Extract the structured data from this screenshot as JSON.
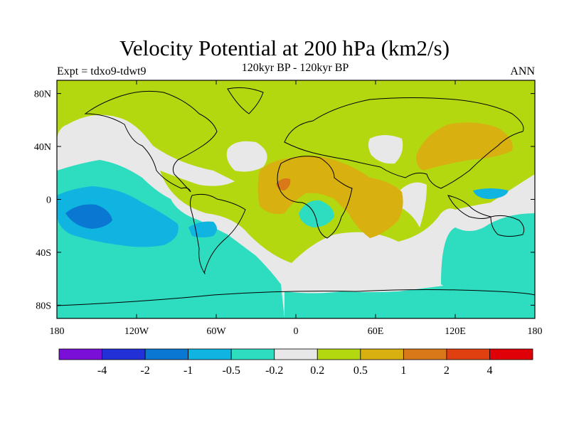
{
  "header": {
    "title": "Velocity Potential at 200 hPa (km2/s)",
    "subtitle": "120kyr BP - 120kyr BP",
    "left_label": "Expt = tdxo9-tdwt9",
    "right_label": "ANN"
  },
  "map": {
    "projection": "cylindrical equidistant",
    "lon_range": [
      -180,
      180
    ],
    "lat_range": [
      -90,
      90
    ],
    "lat_ticks": [
      {
        "value": 80,
        "label": "80N"
      },
      {
        "value": 40,
        "label": "40N"
      },
      {
        "value": 0,
        "label": "0"
      },
      {
        "value": -40,
        "label": "40S"
      },
      {
        "value": -80,
        "label": "80S"
      }
    ],
    "lon_ticks": [
      {
        "value": -180,
        "label": "180"
      },
      {
        "value": -120,
        "label": "120W"
      },
      {
        "value": -60,
        "label": "60W"
      },
      {
        "value": 0,
        "label": "0"
      },
      {
        "value": 60,
        "label": "60E"
      },
      {
        "value": 120,
        "label": "120E"
      },
      {
        "value": 180,
        "label": "180"
      }
    ]
  },
  "colorbar": {
    "colors": [
      "#7a10d8",
      "#2230d8",
      "#0a78d2",
      "#10b4e0",
      "#2edcc0",
      "#e8e8e8",
      "#b4d810",
      "#d8b010",
      "#d87818",
      "#e04010",
      "#e00008"
    ],
    "boundary_labels": [
      "-4",
      "-2",
      "-1",
      "-0.5",
      "-0.2",
      "0.2",
      "0.5",
      "1",
      "2",
      "4"
    ]
  }
}
